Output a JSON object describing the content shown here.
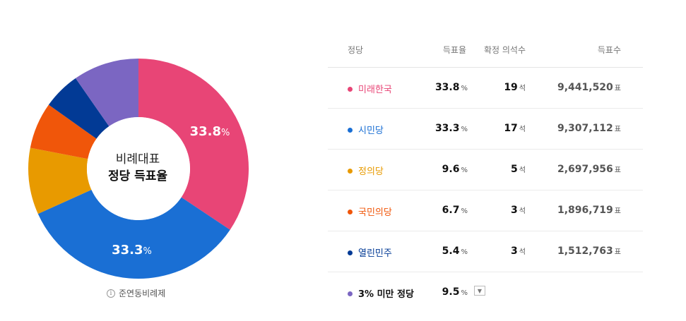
{
  "chart_data": {
    "type": "pie",
    "categories": [
      "미래한국",
      "시민당",
      "정의당",
      "국민의당",
      "열린민주",
      "3% 미만 정당"
    ],
    "values": [
      33.8,
      33.3,
      9.6,
      6.7,
      5.4,
      9.5
    ],
    "colors": [
      "#e84576",
      "#1a6fd4",
      "#e89a00",
      "#f0560a",
      "#023a95",
      "#7b66c2"
    ],
    "slice_labels": [
      {
        "value": "33.8",
        "unit": "%"
      },
      {
        "value": "33.3",
        "unit": "%"
      }
    ]
  },
  "center": {
    "line1": "비례대표",
    "line2": "정당 득표율"
  },
  "note": {
    "icon": "info-icon",
    "glyph": "i",
    "text": "준연동비례제"
  },
  "table": {
    "headers": {
      "party": "정당",
      "rate": "득표율",
      "seats": "확정 의석수",
      "votes": "득표수"
    },
    "units": {
      "rate": "%",
      "seats": "석",
      "votes": "표"
    },
    "rows": [
      {
        "name": "미래한국",
        "color": "#e84576",
        "rate": "33.8",
        "seats": "19",
        "votes": "9,441,520"
      },
      {
        "name": "시민당",
        "color": "#1a6fd4",
        "rate": "33.3",
        "seats": "17",
        "votes": "9,307,112"
      },
      {
        "name": "정의당",
        "color": "#e89a00",
        "rate": "9.6",
        "seats": "5",
        "votes": "2,697,956"
      },
      {
        "name": "국민의당",
        "color": "#f0560a",
        "rate": "6.7",
        "seats": "3",
        "votes": "1,896,719"
      },
      {
        "name": "열린민주",
        "color": "#023a95",
        "rate": "5.4",
        "seats": "3",
        "votes": "1,512,763"
      },
      {
        "name": "3% 미만 정당",
        "color": "#7b66c2",
        "rate": "9.5"
      }
    ]
  }
}
